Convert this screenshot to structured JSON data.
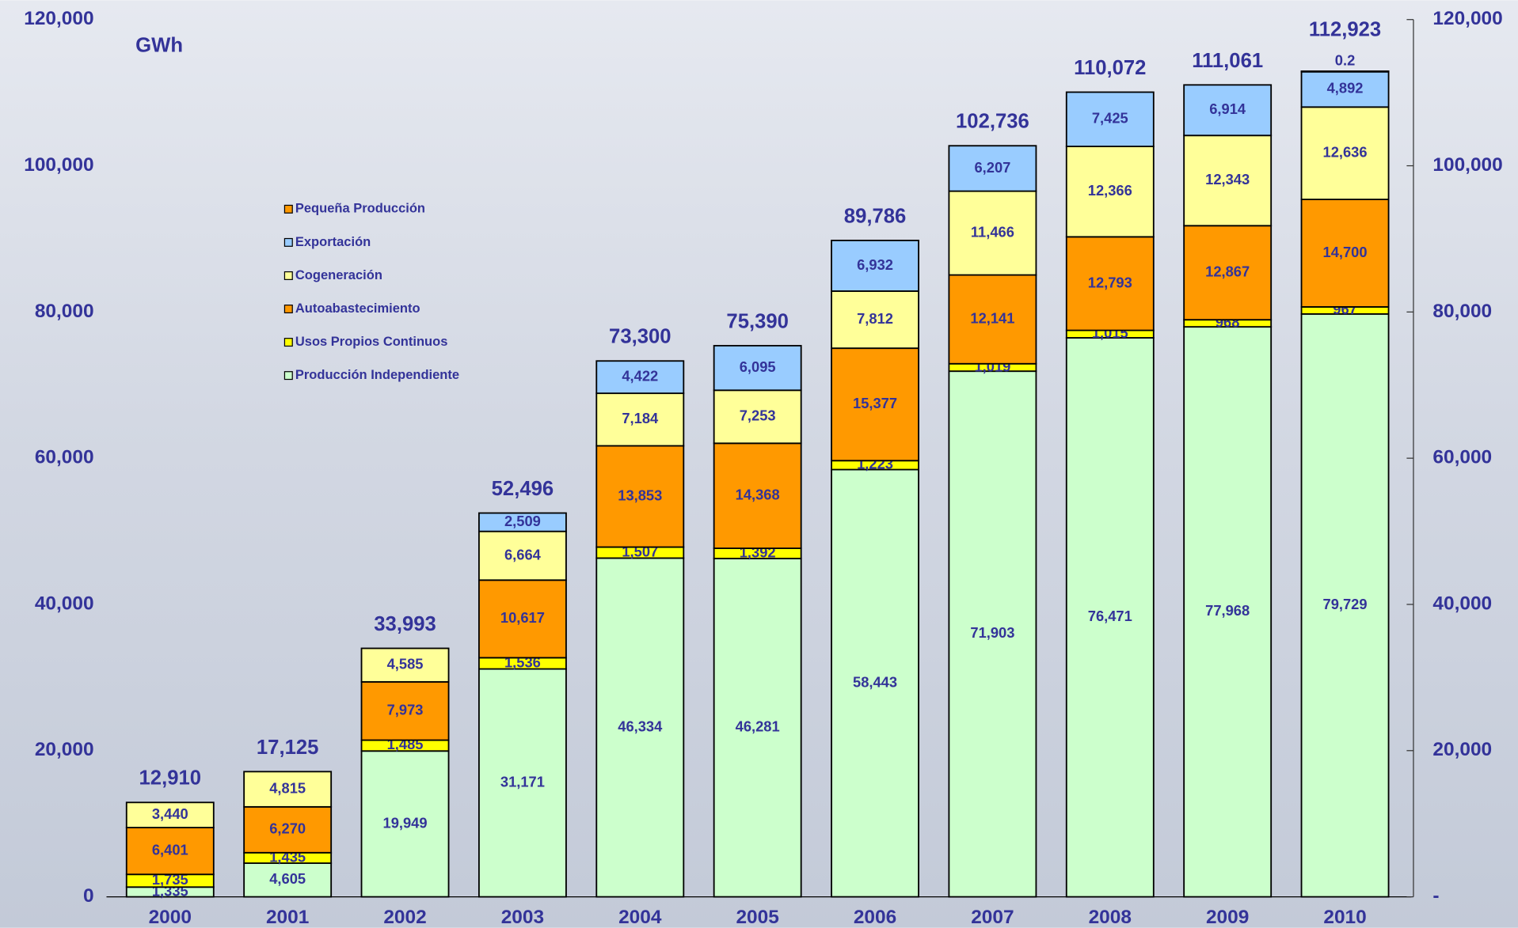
{
  "chart_data": {
    "type": "stacked-bar",
    "y_label": "GWh",
    "categories": [
      "2000",
      "2001",
      "2002",
      "2003",
      "2004",
      "2005",
      "2006",
      "2007",
      "2008",
      "2009",
      "2010"
    ],
    "series": [
      {
        "name": "Producción Independiente",
        "color": "#ccffcc",
        "values": [
          1335,
          4605,
          19949,
          31171,
          46334,
          46281,
          58443,
          71903,
          76471,
          77968,
          79729
        ],
        "value_labels": [
          "1,335",
          "4,605",
          "19,949",
          "31,171",
          "46,334",
          "46,281",
          "58,443",
          "71,903",
          "76,471",
          "77,968",
          "79,729"
        ]
      },
      {
        "name": "Usos Propios Continuos",
        "color": "#ffff00",
        "values": [
          1735,
          1435,
          1485,
          1536,
          1507,
          1392,
          1223,
          1019,
          1015,
          968,
          967
        ],
        "value_labels": [
          "1,735",
          "1,435",
          "1,485",
          "1,536",
          "1,507",
          "1,392",
          "1,223",
          "1,019",
          "1,015",
          "968",
          "967"
        ]
      },
      {
        "name": "Autoabastecimiento",
        "color": "#ff9900",
        "values": [
          6401,
          6270,
          7973,
          10617,
          13853,
          14368,
          15377,
          12141,
          12793,
          12867,
          14700
        ],
        "value_labels": [
          "6,401",
          "6,270",
          "7,973",
          "10,617",
          "13,853",
          "14,368",
          "15,377",
          "12,141",
          "12,793",
          "12,867",
          "14,700"
        ]
      },
      {
        "name": "Cogeneración",
        "color": "#ffff99",
        "values": [
          3440,
          4815,
          4585,
          6664,
          7184,
          7253,
          7812,
          11466,
          12366,
          12343,
          12636
        ],
        "value_labels": [
          "3,440",
          "4,815",
          "4,585",
          "6,664",
          "7,184",
          "7,253",
          "7,812",
          "11,466",
          "12,366",
          "12,343",
          "12,636"
        ]
      },
      {
        "name": "Exportación",
        "color": "#99ccff",
        "values": [
          null,
          null,
          null,
          2509,
          4422,
          6095,
          6932,
          6207,
          7425,
          6914,
          4892
        ],
        "value_labels": [
          null,
          null,
          null,
          "2,509",
          "4,422",
          "6,095",
          "6,932",
          "6,207",
          "7,425",
          "6,914",
          "4,892"
        ]
      },
      {
        "name": "Pequeña Producción",
        "color": "#ff9900",
        "values": [
          null,
          null,
          null,
          null,
          null,
          null,
          null,
          null,
          null,
          null,
          0.2
        ]
      }
    ],
    "totals": {
      "values": [
        12910,
        17125,
        33993,
        52496,
        73300,
        75390,
        89786,
        102736,
        110072,
        111061,
        112923
      ],
      "value_labels": [
        "12,910",
        "17,125",
        "33,993",
        "52,496",
        "73,300",
        "75,390",
        "89,786",
        "102,736",
        "110,072",
        "111,061",
        "112,923"
      ]
    },
    "ylim": [
      0,
      120000
    ],
    "yticks": [
      0,
      {
        "value": 20000,
        "label": "20,000"
      },
      {
        "value": 40000,
        "label": "40,000"
      },
      {
        "value": 60000,
        "label": "60,000"
      },
      {
        "value": 80000,
        "label": "80,000"
      },
      {
        "value": 100000,
        "label": "100,000"
      },
      {
        "value": 120000,
        "label": "120,000"
      }
    ],
    "y2lim": [
      0,
      120000
    ],
    "y2ticks": [
      {
        "value": 0,
        "label": "-"
      },
      {
        "value": 20000,
        "label": "20,000"
      },
      {
        "value": 40000,
        "label": "40,000"
      },
      {
        "value": 60000,
        "label": "60,000"
      },
      {
        "value": 80000,
        "label": "80,000"
      },
      {
        "value": 100000,
        "label": "100,000"
      },
      {
        "value": 120000,
        "label": "120,000"
      }
    ],
    "legend": "upper-left"
  }
}
